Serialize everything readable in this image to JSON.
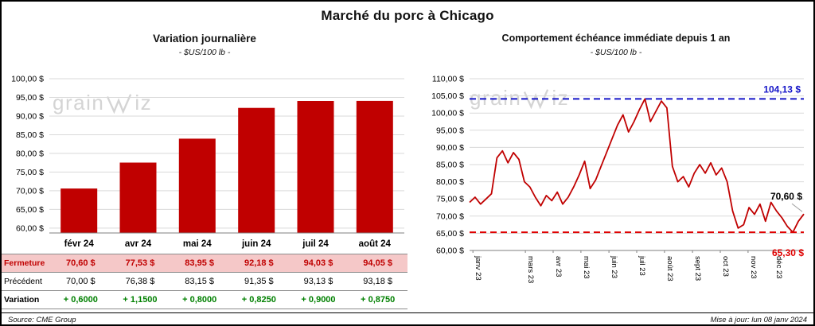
{
  "header": {
    "title": "Marché du porc à Chicago"
  },
  "watermark": {
    "part1": "grain",
    "part2": "iz"
  },
  "left_panel": {
    "title": "Variation journalière",
    "subtitle": "- $US/100 lb -",
    "table": {
      "rows": [
        {
          "id": "fermeture",
          "label": "Fermeture",
          "values": [
            "70,60 $",
            "77,53 $",
            "83,95 $",
            "92,18 $",
            "94,03 $",
            "94,05 $"
          ]
        },
        {
          "id": "precedent",
          "label": "Précédent",
          "values": [
            "70,00 $",
            "76,38 $",
            "83,15 $",
            "91,35 $",
            "93,13 $",
            "93,18 $"
          ]
        },
        {
          "id": "variation",
          "label": "Variation",
          "values": [
            "+ 0,6000",
            "+ 1,1500",
            "+ 0,8000",
            "+ 0,8250",
            "+ 0,9000",
            "+ 0,8750"
          ]
        }
      ]
    }
  },
  "right_panel": {
    "title": "Comportement échéance immédiate depuis 1 an",
    "subtitle": "- $US/100 lb -"
  },
  "footer": {
    "source": "Source: CME Group",
    "updated": "Mise à jour: lun 08 janv 2024"
  },
  "chart_data": [
    {
      "type": "bar",
      "title": "Variation journalière",
      "subtitle": "- $US/100 lb -",
      "categories": [
        "févr 24",
        "avr 24",
        "mai 24",
        "juin 24",
        "juil 24",
        "août 24"
      ],
      "values": [
        70.6,
        77.53,
        83.95,
        92.18,
        94.03,
        94.05
      ],
      "ylim": [
        60,
        100
      ],
      "ytick_step": 5,
      "ytick_format": "fr-dollar",
      "bar_color": "#C00000",
      "grid": true,
      "legend": "none"
    },
    {
      "type": "line",
      "title": "Comportement échéance immédiate depuis 1 an",
      "subtitle": "- $US/100 lb -",
      "ylim": [
        60,
        110
      ],
      "ytick_step": 5,
      "ytick_format": "fr-dollar",
      "line_color": "#C00000",
      "grid": true,
      "legend": "none",
      "x_labels": [
        {
          "label": "janv 23",
          "pos": 0.01
        },
        {
          "label": "mars 23",
          "pos": 0.167
        },
        {
          "label": "avr 23",
          "pos": 0.25
        },
        {
          "label": "mai 23",
          "pos": 0.333
        },
        {
          "label": "juin 23",
          "pos": 0.417
        },
        {
          "label": "juil 23",
          "pos": 0.5
        },
        {
          "label": "août 23",
          "pos": 0.583
        },
        {
          "label": "sept 23",
          "pos": 0.667
        },
        {
          "label": "oct 23",
          "pos": 0.75
        },
        {
          "label": "nov 23",
          "pos": 0.833
        },
        {
          "label": "déc 23",
          "pos": 0.91
        }
      ],
      "values": [
        74.0,
        75.5,
        73.5,
        75.0,
        76.5,
        87.0,
        89.0,
        85.5,
        88.5,
        86.5,
        80.0,
        78.5,
        75.5,
        73.0,
        76.0,
        74.5,
        77.0,
        73.5,
        75.5,
        78.5,
        82.0,
        86.0,
        78.0,
        80.5,
        84.5,
        88.5,
        92.5,
        96.5,
        99.5,
        94.5,
        97.5,
        101.0,
        104.13,
        97.5,
        100.5,
        103.5,
        101.5,
        84.5,
        80.0,
        81.5,
        78.5,
        82.5,
        85.0,
        82.5,
        85.5,
        82.0,
        84.0,
        80.0,
        71.5,
        66.5,
        67.5,
        72.5,
        70.5,
        73.5,
        68.5,
        74.0,
        71.5,
        69.5,
        67.0,
        65.3,
        68.5,
        70.6
      ],
      "annotations": [
        {
          "type": "hline",
          "value": 104.13,
          "label": "104,13 $",
          "color": "#1414C8",
          "style": "dashed",
          "label_pos": "above-right"
        },
        {
          "type": "hline",
          "value": 65.3,
          "label": "65,30 $",
          "color": "#E00000",
          "style": "dashed",
          "label_pos": "below-right"
        },
        {
          "type": "last-point-label",
          "value": 70.6,
          "label": "70,60 $",
          "color": "#000000"
        }
      ]
    }
  ]
}
